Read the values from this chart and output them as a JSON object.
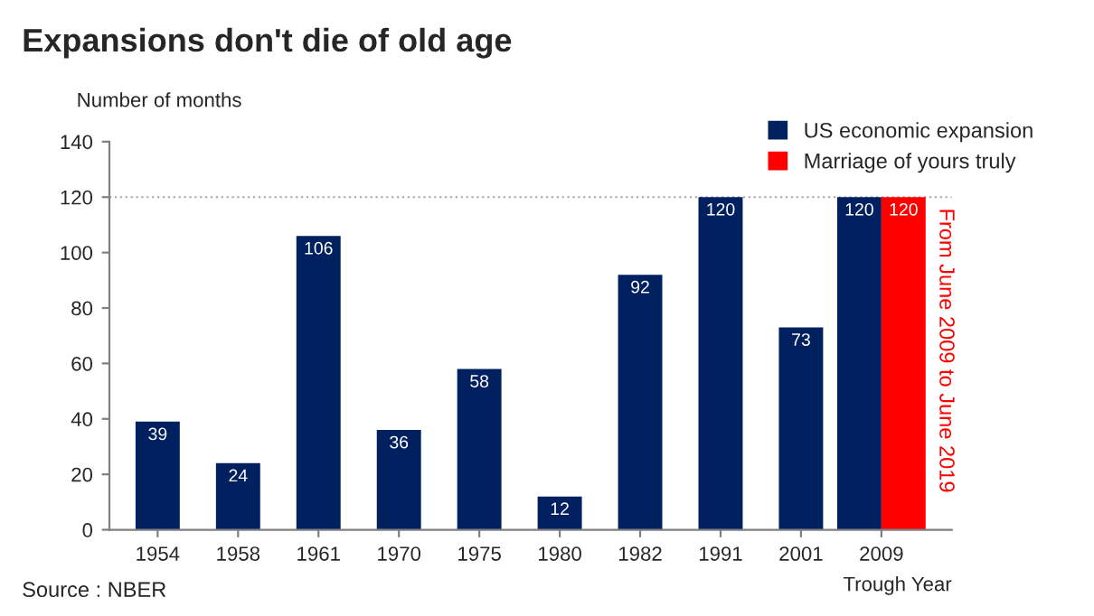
{
  "chart_data": {
    "type": "bar",
    "title": "Expansions don't die of old age",
    "ylabel": "Number of months",
    "xlabel": "Trough Year",
    "categories": [
      "1954",
      "1958",
      "1961",
      "1970",
      "1975",
      "1980",
      "1982",
      "1991",
      "2001",
      "2009"
    ],
    "series": [
      {
        "name": "US economic expansion",
        "color": "#002060",
        "values": [
          39,
          24,
          106,
          36,
          58,
          12,
          92,
          120,
          73,
          120
        ]
      },
      {
        "name": "Marriage of yours truly",
        "color": "#ff0000",
        "values": [
          null,
          null,
          null,
          null,
          null,
          null,
          null,
          null,
          null,
          120
        ]
      }
    ],
    "ylim": [
      0,
      140
    ],
    "yticks": [
      0,
      20,
      40,
      60,
      80,
      100,
      120,
      140
    ],
    "ref_lines": [
      {
        "axis": "y",
        "value": 120,
        "color": "#a6a6a6",
        "line_style": "dotted"
      }
    ],
    "data_labels": true,
    "legend": "top right",
    "grid": false,
    "annotations": [
      {
        "text": "From June 2009 to June 2019",
        "x": "2009",
        "y": 116
      },
      "Source : NBER"
    ]
  }
}
